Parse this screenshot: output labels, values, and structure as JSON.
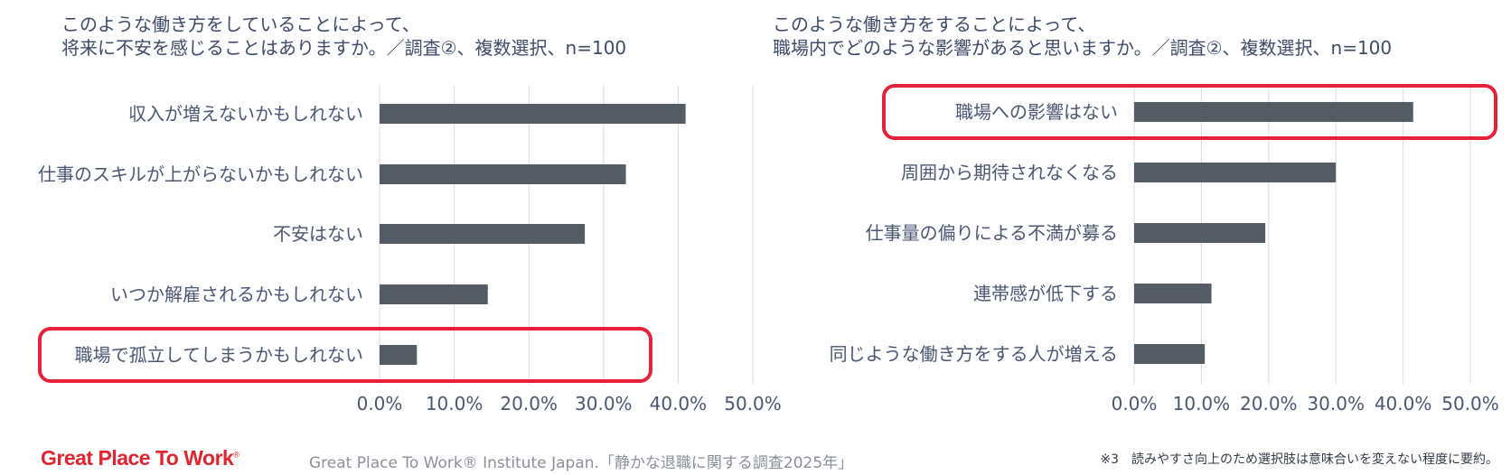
{
  "chart_data": [
    {
      "type": "bar",
      "orientation": "horizontal",
      "title_lines": [
        "このような働き方をしていることによって、",
        "将来に不安を感じることはありますか。／調査②、複数選択、n=100"
      ],
      "categories": [
        "収入が増えないかもしれない",
        "仕事のスキルが上がらないかもしれない",
        "不安はない",
        "いつか解雇されるかもしれない",
        "職場で孤立してしまうかもしれない"
      ],
      "values": [
        41,
        33,
        27.5,
        14.5,
        5
      ],
      "value_unit": "%",
      "xlim": [
        0,
        50
      ],
      "xticks": [
        "0.0%",
        "10.0%",
        "20.0%",
        "30.0%",
        "40.0%",
        "50.0%"
      ],
      "grid": true,
      "highlighted_category": "職場で孤立してしまうかもしれない",
      "bar_color": "#545c66",
      "highlight_color": "#e8213a"
    },
    {
      "type": "bar",
      "orientation": "horizontal",
      "title_lines": [
        "このような働き方をすることによって、",
        "職場内でどのような影響があると思いますか。／調査②、複数選択、n=100"
      ],
      "categories": [
        "職場への影響はない",
        "周囲から期待されなくなる",
        "仕事量の偏りによる不満が募る",
        "連帯感が低下する",
        "同じような働き方をする人が増える"
      ],
      "values": [
        41.5,
        30,
        19.5,
        11.5,
        10.5
      ],
      "value_unit": "%",
      "xlim": [
        0,
        50
      ],
      "xticks": [
        "0.0%",
        "10.0%",
        "20.0%",
        "30.0%",
        "40.0%",
        "50.0%"
      ],
      "grid": true,
      "highlighted_category": "職場への影響はない",
      "bar_color": "#545c66",
      "highlight_color": "#e8213a"
    }
  ],
  "footer": {
    "logo": "Great Place To Work",
    "logo_mark": "®",
    "source": "Great Place To Work® Institute Japan.「静かな退職に関する調査2025年」",
    "note": "※3　読みやすさ向上のため選択肢は意味合いを変えない程度に要約。"
  },
  "colors": {
    "bar": "#545c66",
    "highlight": "#e8213a",
    "label_text": "#4a5672",
    "logo_red": "#e2242f"
  }
}
